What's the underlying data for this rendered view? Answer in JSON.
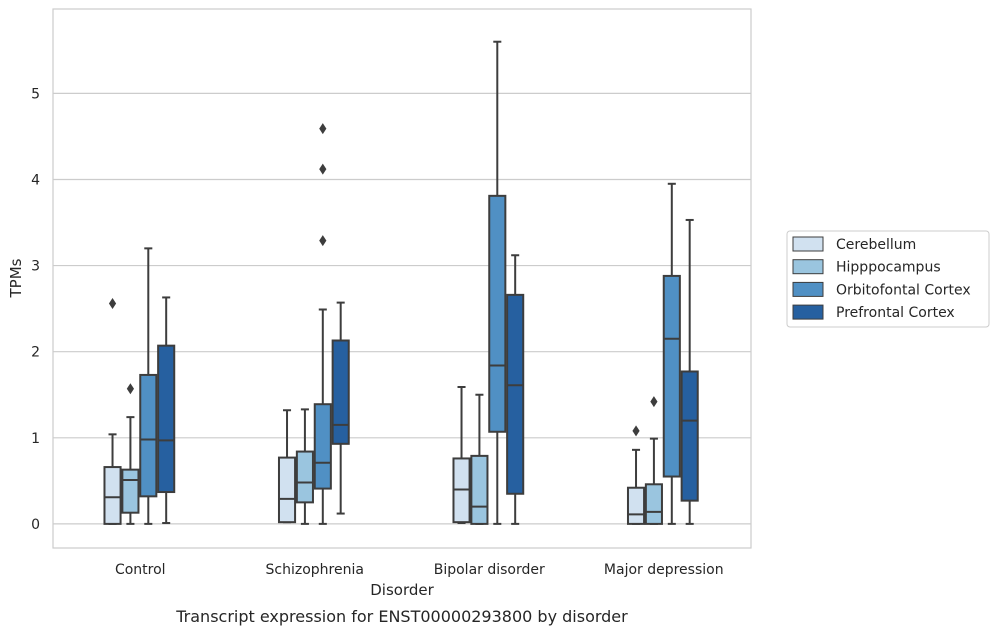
{
  "chart_data": {
    "type": "boxplot",
    "title": "",
    "caption": "Transcript expression for ENST00000293800 by disorder",
    "xlabel": "Disorder",
    "ylabel": "TPMs",
    "ylim": [
      -0.28,
      5.98
    ],
    "yticks": [
      0,
      1,
      2,
      3,
      4,
      5
    ],
    "grid": "horizontal",
    "legend_position": "right",
    "categories": [
      "Control",
      "Schizophrenia",
      "Bipolar disorder",
      "Major depression"
    ],
    "series": [
      {
        "name": "Cerebellum",
        "color": "#d1e1f0",
        "boxes": [
          {
            "whislo": 0.0,
            "q1": 0.0,
            "med": 0.31,
            "q3": 0.66,
            "whishi": 1.04,
            "fliers": [
              2.56
            ]
          },
          {
            "whislo": 0.02,
            "q1": 0.02,
            "med": 0.29,
            "q3": 0.77,
            "whishi": 1.32,
            "fliers": []
          },
          {
            "whislo": 0.01,
            "q1": 0.02,
            "med": 0.4,
            "q3": 0.76,
            "whishi": 1.59,
            "fliers": []
          },
          {
            "whislo": 0.0,
            "q1": 0.0,
            "med": 0.11,
            "q3": 0.42,
            "whishi": 0.86,
            "fliers": [
              1.08
            ]
          }
        ]
      },
      {
        "name": "Hipppocampus",
        "color": "#9ac5df",
        "boxes": [
          {
            "whislo": 0.0,
            "q1": 0.13,
            "med": 0.51,
            "q3": 0.63,
            "whishi": 1.24,
            "fliers": [
              1.57
            ]
          },
          {
            "whislo": 0.0,
            "q1": 0.25,
            "med": 0.48,
            "q3": 0.84,
            "whishi": 1.33,
            "fliers": []
          },
          {
            "whislo": 0.0,
            "q1": 0.0,
            "med": 0.2,
            "q3": 0.79,
            "whishi": 1.5,
            "fliers": []
          },
          {
            "whislo": 0.0,
            "q1": 0.0,
            "med": 0.14,
            "q3": 0.46,
            "whishi": 0.99,
            "fliers": [
              1.42
            ]
          }
        ]
      },
      {
        "name": "Orbitofontal Cortex",
        "color": "#5090c4",
        "boxes": [
          {
            "whislo": 0.0,
            "q1": 0.32,
            "med": 0.98,
            "q3": 1.73,
            "whishi": 3.2,
            "fliers": []
          },
          {
            "whislo": 0.0,
            "q1": 0.41,
            "med": 0.71,
            "q3": 1.39,
            "whishi": 2.49,
            "fliers": [
              3.29,
              4.12,
              4.59
            ]
          },
          {
            "whislo": 0.0,
            "q1": 1.07,
            "med": 1.84,
            "q3": 3.81,
            "whishi": 5.6,
            "fliers": []
          },
          {
            "whislo": 0.0,
            "q1": 0.55,
            "med": 2.15,
            "q3": 2.88,
            "whishi": 3.95,
            "fliers": []
          }
        ]
      },
      {
        "name": "Prefrontal Cortex",
        "color": "#2660a0",
        "boxes": [
          {
            "whislo": 0.01,
            "q1": 0.37,
            "med": 0.97,
            "q3": 2.07,
            "whishi": 2.63,
            "fliers": []
          },
          {
            "whislo": 0.12,
            "q1": 0.93,
            "med": 1.15,
            "q3": 2.13,
            "whishi": 2.57,
            "fliers": []
          },
          {
            "whislo": 0.0,
            "q1": 0.35,
            "med": 1.61,
            "q3": 2.66,
            "whishi": 3.12,
            "fliers": []
          },
          {
            "whislo": 0.0,
            "q1": 0.27,
            "med": 1.2,
            "q3": 1.77,
            "whishi": 3.53,
            "fliers": []
          }
        ]
      }
    ]
  }
}
